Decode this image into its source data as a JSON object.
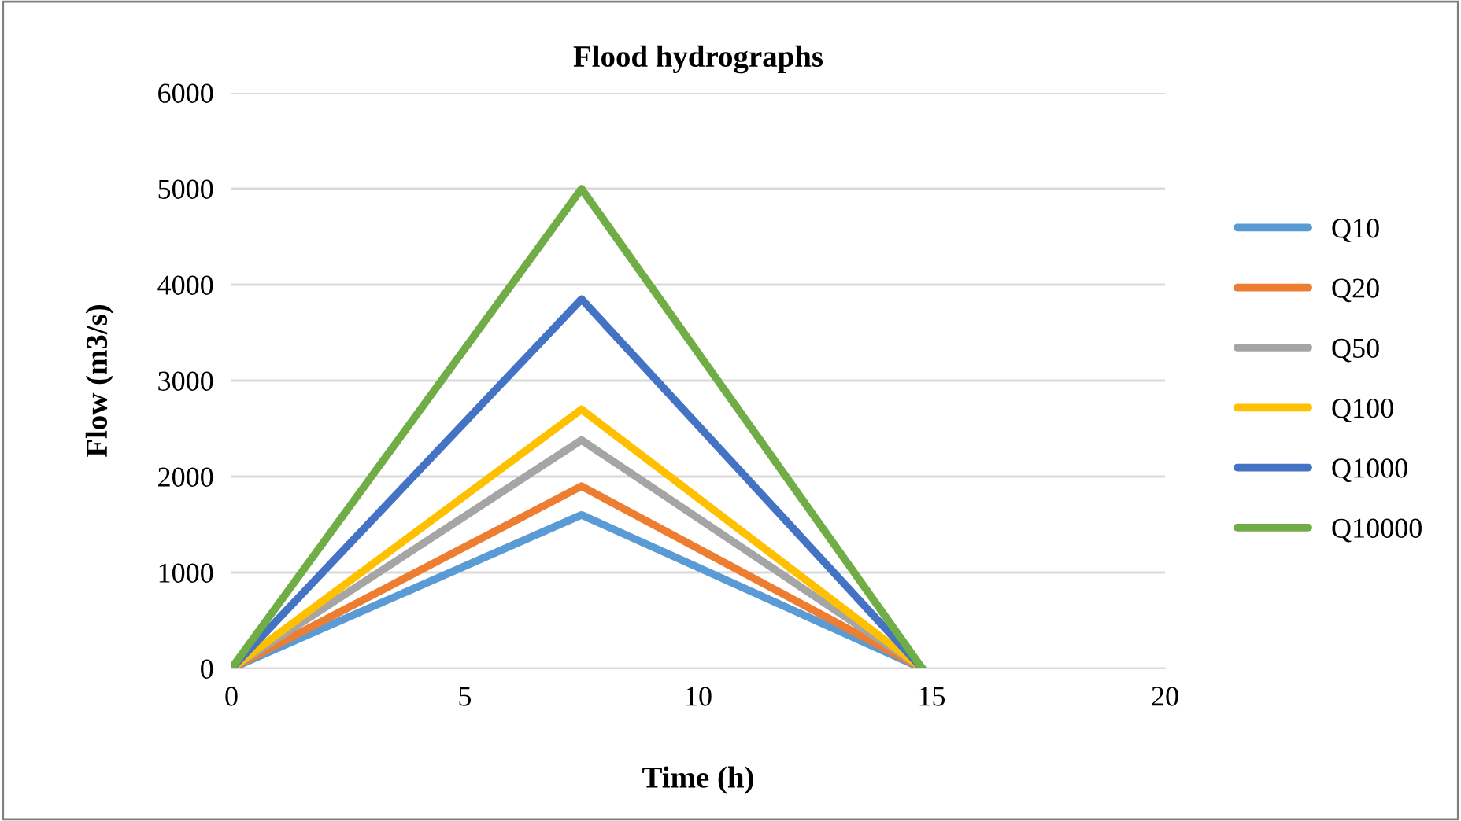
{
  "chart_data": {
    "type": "line",
    "title": "Flood hydrographs",
    "xlabel": "Time (h)",
    "ylabel": "Flow (m3/s)",
    "x": [
      0,
      7.5,
      14.8
    ],
    "series": [
      {
        "name": "Q10",
        "color": "#5b9bd5",
        "values": [
          0,
          1600,
          0
        ]
      },
      {
        "name": "Q20",
        "color": "#ed7d31",
        "values": [
          0,
          1900,
          0
        ]
      },
      {
        "name": "Q50",
        "color": "#a5a5a5",
        "values": [
          0,
          2380,
          0
        ]
      },
      {
        "name": "Q100",
        "color": "#ffc000",
        "values": [
          0,
          2700,
          0
        ]
      },
      {
        "name": "Q1000",
        "color": "#4472c4",
        "values": [
          0,
          3850,
          0
        ]
      },
      {
        "name": "Q10000",
        "color": "#70ad47",
        "values": [
          0,
          5000,
          0
        ]
      }
    ],
    "xlim": [
      0,
      20
    ],
    "xticks": [
      0,
      5,
      10,
      15,
      20
    ],
    "ylim": [
      0,
      6000
    ],
    "yticks": [
      0,
      1000,
      2000,
      3000,
      4000,
      5000,
      6000
    ],
    "grid": "y",
    "legend": "right",
    "marker": "none",
    "line_style": "solid"
  }
}
